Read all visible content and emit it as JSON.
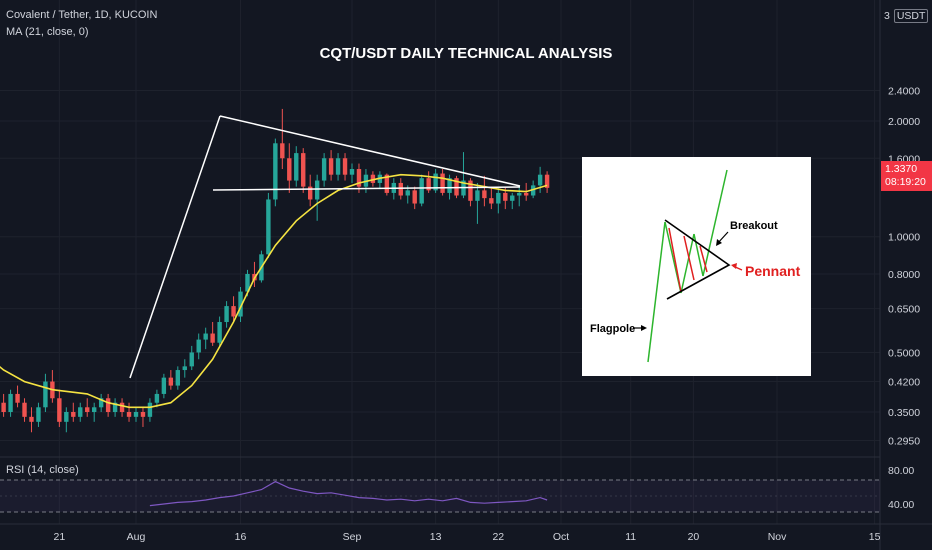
{
  "header": {
    "symbol": "Covalent / Tether, 1D, KUCOIN",
    "ma_label": "MA (21, close, 0)",
    "rsi_label": "RSI (14, close)",
    "currency": "USDT",
    "currency_prefix": "3"
  },
  "price_tag": {
    "value": "1.3370",
    "countdown": "08:19:20",
    "color": "#f23645"
  },
  "colors": {
    "up": "#26a69a",
    "down": "#ef5350",
    "ma": "#f5e342",
    "rsi": "#7e57c2",
    "background": "#131722",
    "pattern": "#ffffff"
  },
  "chart_data": {
    "type": "candlestick",
    "title": "CQT/USDT DAILY TECHNICAL ANALYSIS",
    "y_scale": "log",
    "y_ticks": [
      "2.4000",
      "2.0000",
      "1.6000",
      "1.0000",
      "0.8000",
      "0.6500",
      "0.5000",
      "0.4200",
      "0.3500",
      "0.2950"
    ],
    "x_ticks": [
      "21",
      "Aug",
      "16",
      "Sep",
      "13",
      "22",
      "Oct",
      "11",
      "20",
      "Nov",
      "15"
    ],
    "x_tick_dates": [
      "2021-07-21",
      "2021-08-01",
      "2021-08-16",
      "2021-09-01",
      "2021-09-13",
      "2021-09-22",
      "2021-10-01",
      "2021-10-11",
      "2021-10-20",
      "2021-11-01",
      "2021-11-15"
    ],
    "first_date": "2021-07-10",
    "candles": [
      [
        0.4,
        0.42,
        0.36,
        0.38
      ],
      [
        0.38,
        0.4,
        0.34,
        0.35
      ],
      [
        0.35,
        0.38,
        0.33,
        0.37
      ],
      [
        0.37,
        0.39,
        0.34,
        0.35
      ],
      [
        0.35,
        0.4,
        0.34,
        0.39
      ],
      [
        0.39,
        0.41,
        0.36,
        0.37
      ],
      [
        0.37,
        0.38,
        0.33,
        0.34
      ],
      [
        0.34,
        0.36,
        0.31,
        0.33
      ],
      [
        0.33,
        0.37,
        0.32,
        0.36
      ],
      [
        0.36,
        0.44,
        0.35,
        0.42
      ],
      [
        0.42,
        0.45,
        0.37,
        0.38
      ],
      [
        0.38,
        0.4,
        0.32,
        0.33
      ],
      [
        0.33,
        0.36,
        0.31,
        0.35
      ],
      [
        0.35,
        0.37,
        0.33,
        0.34
      ],
      [
        0.34,
        0.37,
        0.33,
        0.36
      ],
      [
        0.36,
        0.38,
        0.34,
        0.35
      ],
      [
        0.35,
        0.37,
        0.33,
        0.36
      ],
      [
        0.36,
        0.39,
        0.35,
        0.38
      ],
      [
        0.38,
        0.39,
        0.34,
        0.35
      ],
      [
        0.35,
        0.38,
        0.34,
        0.37
      ],
      [
        0.37,
        0.38,
        0.34,
        0.35
      ],
      [
        0.35,
        0.37,
        0.33,
        0.34
      ],
      [
        0.34,
        0.36,
        0.33,
        0.35
      ],
      [
        0.35,
        0.36,
        0.32,
        0.34
      ],
      [
        0.34,
        0.38,
        0.33,
        0.37
      ],
      [
        0.37,
        0.4,
        0.36,
        0.39
      ],
      [
        0.39,
        0.44,
        0.38,
        0.43
      ],
      [
        0.43,
        0.45,
        0.4,
        0.41
      ],
      [
        0.41,
        0.46,
        0.4,
        0.45
      ],
      [
        0.45,
        0.48,
        0.43,
        0.46
      ],
      [
        0.46,
        0.52,
        0.45,
        0.5
      ],
      [
        0.5,
        0.56,
        0.48,
        0.54
      ],
      [
        0.54,
        0.58,
        0.51,
        0.56
      ],
      [
        0.56,
        0.6,
        0.52,
        0.53
      ],
      [
        0.53,
        0.62,
        0.52,
        0.6
      ],
      [
        0.6,
        0.68,
        0.58,
        0.66
      ],
      [
        0.66,
        0.7,
        0.6,
        0.62
      ],
      [
        0.62,
        0.74,
        0.6,
        0.72
      ],
      [
        0.72,
        0.82,
        0.7,
        0.8
      ],
      [
        0.8,
        0.86,
        0.74,
        0.77
      ],
      [
        0.77,
        0.92,
        0.76,
        0.9
      ],
      [
        0.9,
        1.3,
        0.88,
        1.25
      ],
      [
        1.25,
        1.8,
        1.2,
        1.75
      ],
      [
        1.75,
        2.15,
        1.5,
        1.6
      ],
      [
        1.6,
        1.75,
        1.3,
        1.4
      ],
      [
        1.4,
        1.72,
        1.35,
        1.65
      ],
      [
        1.65,
        1.7,
        1.3,
        1.35
      ],
      [
        1.35,
        1.45,
        1.2,
        1.25
      ],
      [
        1.25,
        1.45,
        1.1,
        1.4
      ],
      [
        1.4,
        1.65,
        1.35,
        1.6
      ],
      [
        1.6,
        1.68,
        1.4,
        1.45
      ],
      [
        1.45,
        1.65,
        1.4,
        1.6
      ],
      [
        1.6,
        1.65,
        1.4,
        1.45
      ],
      [
        1.45,
        1.55,
        1.38,
        1.5
      ],
      [
        1.5,
        1.55,
        1.3,
        1.35
      ],
      [
        1.35,
        1.5,
        1.3,
        1.45
      ],
      [
        1.45,
        1.48,
        1.35,
        1.38
      ],
      [
        1.38,
        1.48,
        1.33,
        1.45
      ],
      [
        1.45,
        1.46,
        1.28,
        1.3
      ],
      [
        1.3,
        1.42,
        1.25,
        1.38
      ],
      [
        1.38,
        1.42,
        1.25,
        1.28
      ],
      [
        1.28,
        1.36,
        1.22,
        1.32
      ],
      [
        1.32,
        1.35,
        1.18,
        1.22
      ],
      [
        1.22,
        1.45,
        1.2,
        1.42
      ],
      [
        1.42,
        1.48,
        1.3,
        1.32
      ],
      [
        1.32,
        1.5,
        1.3,
        1.46
      ],
      [
        1.46,
        1.5,
        1.28,
        1.3
      ],
      [
        1.3,
        1.45,
        1.25,
        1.42
      ],
      [
        1.42,
        1.44,
        1.26,
        1.28
      ],
      [
        1.28,
        1.66,
        1.26,
        1.4
      ],
      [
        1.4,
        1.42,
        1.2,
        1.24
      ],
      [
        1.24,
        1.38,
        1.08,
        1.32
      ],
      [
        1.32,
        1.44,
        1.2,
        1.26
      ],
      [
        1.26,
        1.35,
        1.18,
        1.22
      ],
      [
        1.22,
        1.34,
        1.15,
        1.3
      ],
      [
        1.3,
        1.34,
        1.18,
        1.24
      ],
      [
        1.24,
        1.3,
        1.18,
        1.28
      ],
      [
        1.28,
        1.36,
        1.2,
        1.3
      ],
      [
        1.3,
        1.38,
        1.24,
        1.28
      ],
      [
        1.28,
        1.4,
        1.26,
        1.36
      ],
      [
        1.36,
        1.52,
        1.3,
        1.45
      ],
      [
        1.45,
        1.48,
        1.3,
        1.34
      ]
    ],
    "ma": [
      [
        0,
        0.5
      ],
      [
        3,
        0.45
      ],
      [
        6,
        0.42
      ],
      [
        10,
        0.4
      ],
      [
        15,
        0.39
      ],
      [
        18,
        0.37
      ],
      [
        21,
        0.36
      ],
      [
        24,
        0.36
      ],
      [
        27,
        0.37
      ],
      [
        30,
        0.41
      ],
      [
        33,
        0.48
      ],
      [
        36,
        0.6
      ],
      [
        39,
        0.78
      ],
      [
        42,
        0.95
      ],
      [
        45,
        1.1
      ],
      [
        48,
        1.22
      ],
      [
        51,
        1.32
      ],
      [
        54,
        1.38
      ],
      [
        57,
        1.42
      ],
      [
        60,
        1.45
      ],
      [
        63,
        1.44
      ],
      [
        66,
        1.42
      ],
      [
        69,
        1.38
      ],
      [
        72,
        1.35
      ],
      [
        75,
        1.32
      ],
      [
        78,
        1.31
      ],
      [
        81,
        1.36
      ]
    ],
    "rsi": [
      [
        24,
        48
      ],
      [
        26,
        50
      ],
      [
        28,
        52
      ],
      [
        30,
        53
      ],
      [
        32,
        55
      ],
      [
        34,
        58
      ],
      [
        36,
        60
      ],
      [
        38,
        64
      ],
      [
        40,
        68
      ],
      [
        42,
        78
      ],
      [
        44,
        70
      ],
      [
        46,
        66
      ],
      [
        48,
        63
      ],
      [
        50,
        64
      ],
      [
        52,
        61
      ],
      [
        54,
        58
      ],
      [
        56,
        57
      ],
      [
        58,
        55
      ],
      [
        60,
        56
      ],
      [
        62,
        54
      ],
      [
        64,
        56
      ],
      [
        66,
        54
      ],
      [
        68,
        57
      ],
      [
        70,
        52
      ],
      [
        72,
        51
      ],
      [
        74,
        52
      ],
      [
        76,
        53
      ],
      [
        78,
        54
      ],
      [
        80,
        58
      ],
      [
        81,
        55
      ]
    ],
    "rsi_ticks": [
      "80.00",
      "40.00"
    ],
    "inset": {
      "breakout_label": "Breakout",
      "pennant_label": "Pennant",
      "flagpole_label": "Flagpole"
    }
  }
}
